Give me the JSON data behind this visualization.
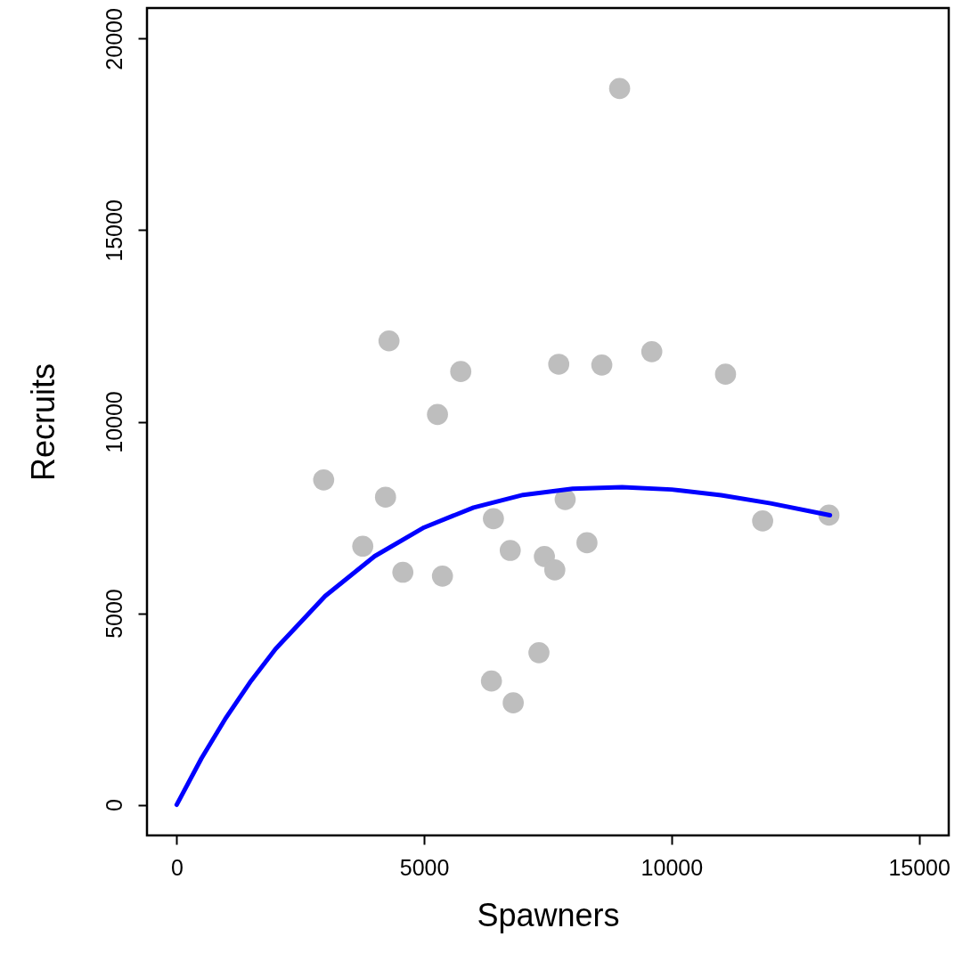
{
  "chart_data": {
    "type": "scatter",
    "xlabel": "Spawners",
    "ylabel": "Recruits",
    "xlim": [
      -600,
      15600
    ],
    "ylim": [
      -800,
      20800
    ],
    "xticks": [
      0,
      5000,
      10000,
      15000
    ],
    "yticks": [
      0,
      5000,
      10000,
      15000,
      20000
    ],
    "grid": false,
    "series": [
      {
        "color": "#bebebe",
        "marker": "circle",
        "x": [
          4290,
          5740,
          5270,
          2970,
          4220,
          3760,
          4570,
          5370,
          8950,
          7720,
          8590,
          9600,
          11090,
          6400,
          7850,
          6740,
          7430,
          7640,
          8290,
          11840,
          13180,
          7320,
          6360,
          6800
        ],
        "values": [
          12110,
          11310,
          10190,
          8480,
          8030,
          6750,
          6070,
          5970,
          18700,
          11500,
          11480,
          11830,
          11240,
          7470,
          7970,
          6640,
          6480,
          6130,
          6840,
          7410,
          7560,
          3970,
          3230,
          2660
        ]
      },
      {
        "type": "line",
        "color": "#0000ff",
        "line_style": "solid",
        "x": [
          0,
          500,
          1000,
          1500,
          2000,
          3000,
          4000,
          5000,
          6000,
          7000,
          8000,
          9000,
          10000,
          11000,
          12000,
          13200
        ],
        "values": [
          0,
          1210,
          2280,
          3230,
          4070,
          5450,
          6490,
          7240,
          7760,
          8090,
          8250,
          8290,
          8230,
          8080,
          7870,
          7560
        ]
      }
    ]
  }
}
